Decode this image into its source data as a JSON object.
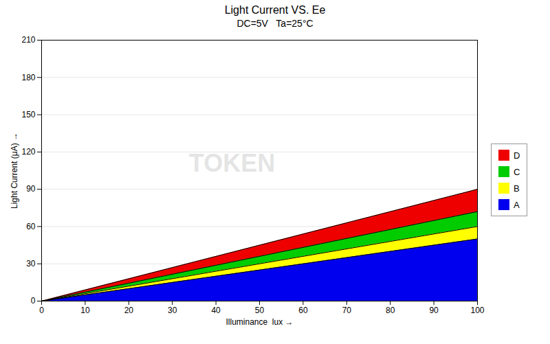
{
  "chart_data": {
    "type": "area",
    "title": "Light Current VS. Ee",
    "subtitle": "DC=5V   Ta=25°C",
    "x_label": "Illuminance  lux",
    "y_label": "Light Current (μA)",
    "x": [
      0,
      100
    ],
    "series": [
      {
        "name": "D",
        "color": "#ee0000",
        "values": [
          0,
          90
        ]
      },
      {
        "name": "C",
        "color": "#00cc00",
        "values": [
          0,
          72
        ]
      },
      {
        "name": "B",
        "color": "#ffff00",
        "values": [
          0,
          60
        ]
      },
      {
        "name": "A",
        "color": "#0000ee",
        "values": [
          0,
          50
        ]
      }
    ],
    "xlim": [
      0,
      100
    ],
    "xticks": [
      0,
      10,
      20,
      30,
      40,
      50,
      60,
      70,
      80,
      90,
      100
    ],
    "ylim": [
      0,
      210
    ],
    "yticks": [
      0,
      30,
      60,
      90,
      120,
      150,
      180,
      210
    ],
    "grid": true,
    "legend": "right",
    "stacked": false,
    "annotations": [
      "TOKEN"
    ]
  }
}
